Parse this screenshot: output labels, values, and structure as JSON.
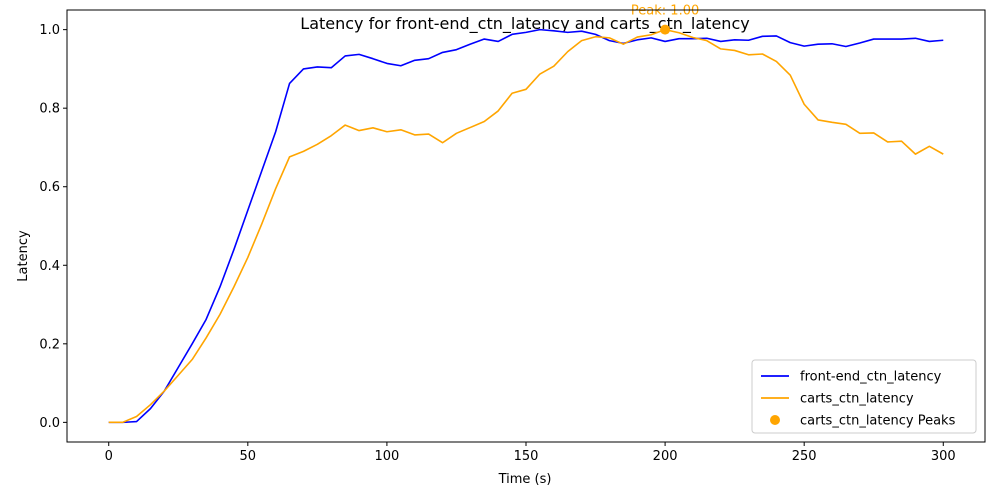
{
  "chart_data": {
    "type": "line",
    "title": "Latency for front-end_ctn_latency and carts_ctn_latency",
    "xlabel": "Time (s)",
    "ylabel": "Latency",
    "xlim": [
      -15,
      315
    ],
    "ylim": [
      -0.05,
      1.05
    ],
    "xticks": [
      0,
      50,
      100,
      150,
      200,
      250,
      300
    ],
    "xtick_labels": [
      "0",
      "50",
      "100",
      "150",
      "200",
      "250",
      "300"
    ],
    "yticks": [
      0.0,
      0.2,
      0.4,
      0.6,
      0.8,
      1.0
    ],
    "ytick_labels": [
      "0.0",
      "0.2",
      "0.4",
      "0.6",
      "0.8",
      "1.0"
    ],
    "grid": false,
    "legend_position": "lower right",
    "x": [
      0,
      5,
      10,
      15,
      20,
      25,
      30,
      35,
      40,
      45,
      50,
      55,
      60,
      65,
      70,
      75,
      80,
      85,
      90,
      95,
      100,
      105,
      110,
      115,
      120,
      125,
      130,
      135,
      140,
      145,
      150,
      155,
      160,
      165,
      170,
      175,
      180,
      185,
      190,
      195,
      200,
      205,
      210,
      215,
      220,
      225,
      230,
      235,
      240,
      245,
      250,
      255,
      260,
      265,
      270,
      275,
      280,
      285,
      290,
      295,
      300
    ],
    "series": [
      {
        "name": "front-end_ctn_latency",
        "color": "#0000ff",
        "values": [
          0.0,
          0.0,
          0.002,
          0.035,
          0.08,
          0.14,
          0.2,
          0.262,
          0.345,
          0.44,
          0.54,
          0.64,
          0.74,
          0.863,
          0.9,
          0.905,
          0.903,
          0.933,
          0.937,
          0.926,
          0.914,
          0.908,
          0.922,
          0.926,
          0.942,
          0.949,
          0.963,
          0.976,
          0.97,
          0.988,
          0.993,
          1.0,
          0.997,
          0.993,
          0.996,
          0.988,
          0.972,
          0.965,
          0.974,
          0.979,
          0.97,
          0.977,
          0.977,
          0.978,
          0.97,
          0.974,
          0.973,
          0.983,
          0.984,
          0.967,
          0.958,
          0.963,
          0.964,
          0.957,
          0.966,
          0.976,
          0.976,
          0.976,
          0.978,
          0.97,
          0.973
        ]
      },
      {
        "name": "carts_ctn_latency",
        "color": "#ffa500",
        "values": [
          0.0,
          0.0,
          0.015,
          0.045,
          0.08,
          0.12,
          0.16,
          0.215,
          0.275,
          0.345,
          0.42,
          0.505,
          0.595,
          0.676,
          0.69,
          0.708,
          0.73,
          0.757,
          0.743,
          0.75,
          0.74,
          0.745,
          0.732,
          0.734,
          0.712,
          0.736,
          0.751,
          0.766,
          0.793,
          0.838,
          0.848,
          0.887,
          0.907,
          0.944,
          0.972,
          0.982,
          0.979,
          0.963,
          0.981,
          0.987,
          1.0,
          0.992,
          0.98,
          0.972,
          0.951,
          0.947,
          0.936,
          0.938,
          0.919,
          0.884,
          0.81,
          0.77,
          0.764,
          0.759,
          0.736,
          0.737,
          0.714,
          0.716,
          0.683,
          0.703,
          0.683
        ]
      }
    ],
    "peaks": {
      "name": "carts_ctn_latency Peaks",
      "color": "#ffa500",
      "points": [
        {
          "x": 200,
          "y": 1.0
        }
      ],
      "annotation": "Peak: 1.00"
    }
  }
}
